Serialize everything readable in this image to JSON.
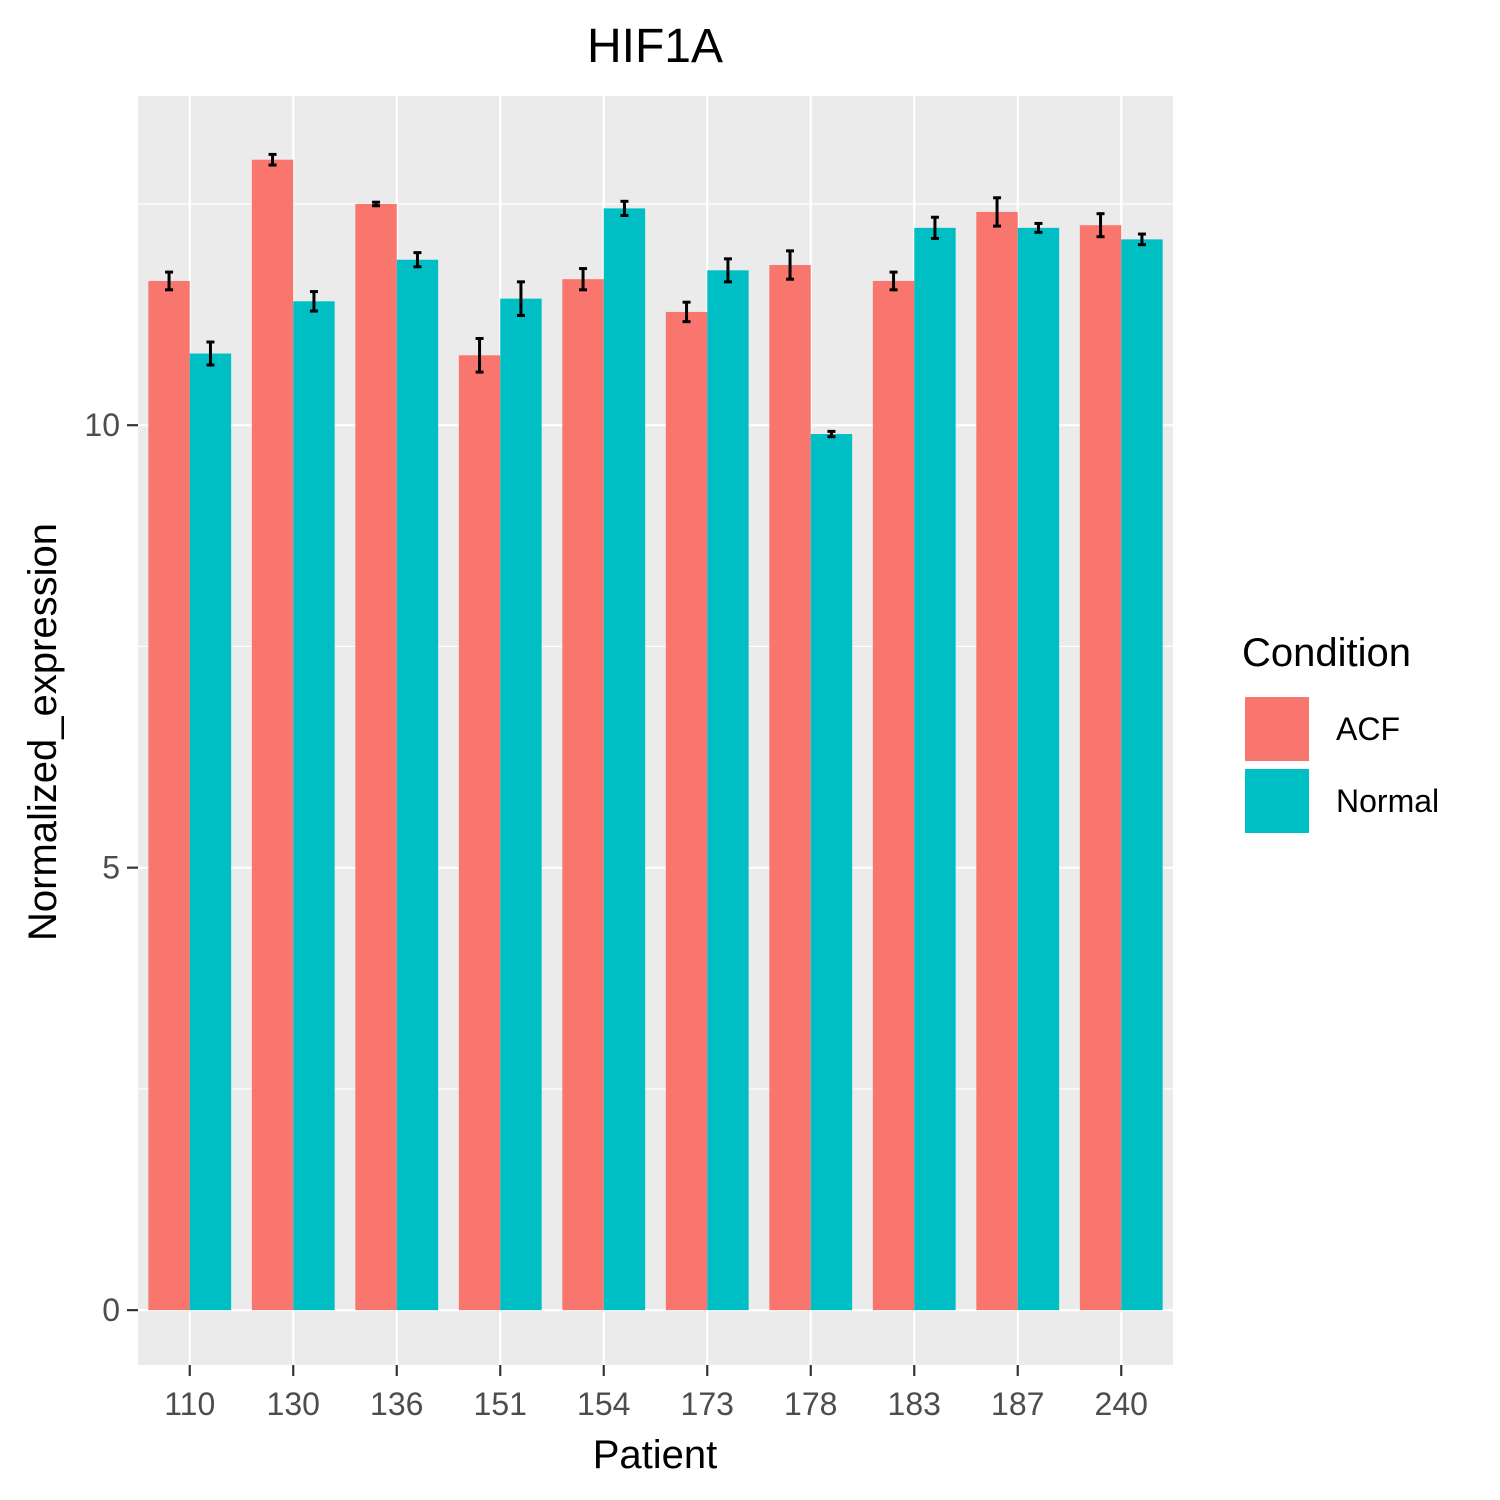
{
  "chart_data": {
    "type": "bar",
    "title": "HIF1A",
    "xlabel": "Patient",
    "ylabel": "Normalized_expression",
    "categories": [
      "110",
      "130",
      "136",
      "151",
      "154",
      "173",
      "178",
      "183",
      "187",
      "240"
    ],
    "series": [
      {
        "name": "ACF",
        "color": "#F8766D",
        "values": [
          11.63,
          13.0,
          12.5,
          10.79,
          11.65,
          11.28,
          11.81,
          11.63,
          12.41,
          12.26
        ],
        "error": [
          0.1,
          0.06,
          0.02,
          0.19,
          0.12,
          0.11,
          0.16,
          0.1,
          0.16,
          0.13
        ]
      },
      {
        "name": "Normal",
        "color": "#00BFC4",
        "values": [
          10.81,
          11.4,
          11.87,
          11.43,
          12.45,
          11.75,
          9.9,
          12.23,
          12.23,
          12.1
        ],
        "error": [
          0.13,
          0.11,
          0.08,
          0.19,
          0.08,
          0.13,
          0.03,
          0.12,
          0.05,
          0.06
        ]
      }
    ],
    "ylim": [
      -0.62,
      13.72
    ],
    "y_ticks": [
      0,
      5,
      10
    ],
    "grid": true,
    "legend": {
      "title": "Condition",
      "placement": "right"
    },
    "colors": {
      "panel_background": "#EBEBEB",
      "grid": "#FFFFFF",
      "error_bar": "#000000"
    }
  }
}
